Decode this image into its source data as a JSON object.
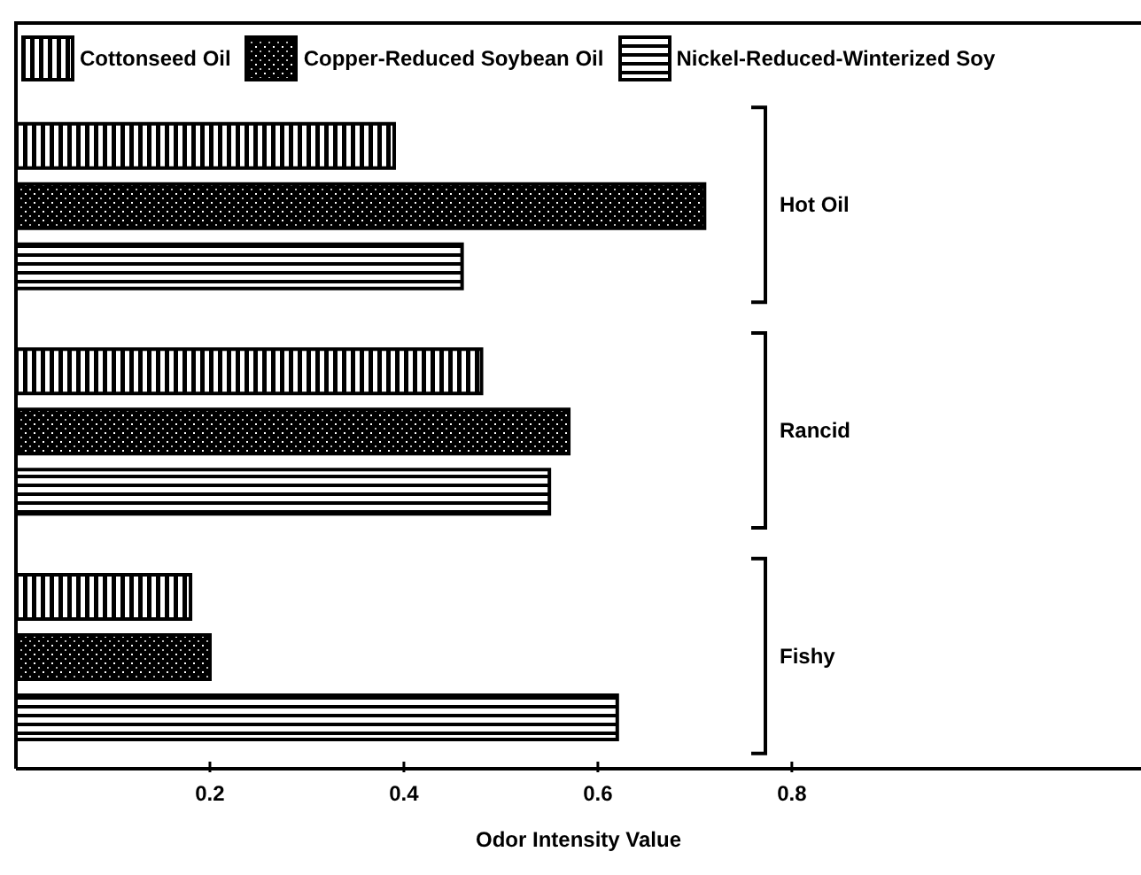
{
  "chart_data": {
    "type": "bar",
    "orientation": "horizontal",
    "xlabel": "Odor Intensity Value",
    "categories": [
      "Hot Oil",
      "Rancid",
      "Fishy"
    ],
    "series": [
      {
        "name": "Cottonseed Oil",
        "color": "#000000",
        "values": [
          0.39,
          0.48,
          0.18
        ]
      },
      {
        "name": "Copper-Reduced Soybean Oil",
        "color": "#000000",
        "values": [
          0.71,
          0.57,
          0.2
        ]
      },
      {
        "name": "Nickel-Reduced-Winterized Soy",
        "color": "#000000",
        "values": [
          0.46,
          0.55,
          0.62
        ]
      }
    ],
    "xlim": [
      0,
      1.16
    ],
    "xticks": [
      0.2,
      0.4,
      0.6,
      0.8
    ],
    "legend": "top"
  }
}
